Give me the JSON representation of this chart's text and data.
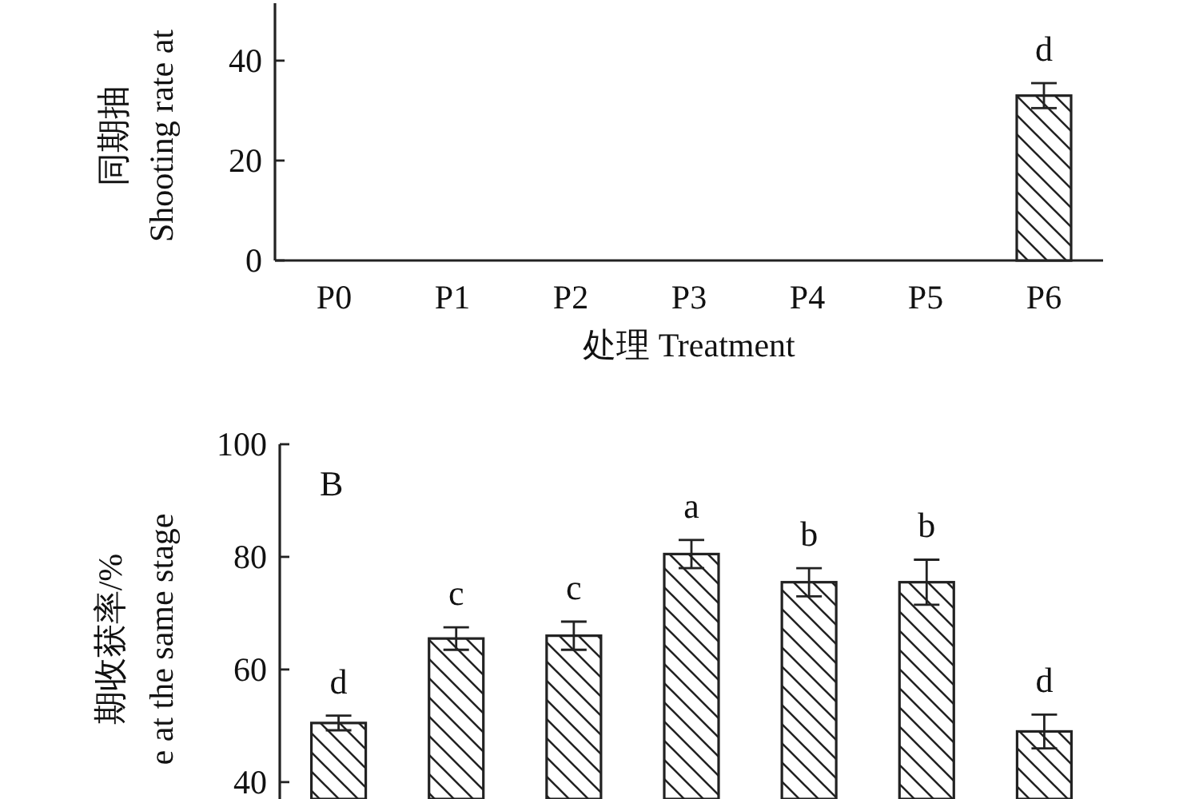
{
  "chart_data": [
    {
      "type": "bar",
      "ylabel": "同期抽\nShooting rate at",
      "xlabel": "处理 Treatment",
      "categories": [
        "P0",
        "P1",
        "P2",
        "P3",
        "P4",
        "P5",
        "P6"
      ],
      "values": [
        null,
        null,
        null,
        null,
        null,
        null,
        33
      ],
      "errors": [
        null,
        null,
        null,
        null,
        null,
        null,
        2.5
      ],
      "color": "#222222",
      "ylim": [
        0,
        51.5
      ],
      "yticks": [
        0,
        20,
        40
      ],
      "annotations": [
        "d"
      ]
    },
    {
      "type": "bar",
      "ylabel": "期收获率/%\ne at the same stage",
      "categories": [
        null,
        null,
        null,
        null,
        null,
        null,
        null
      ],
      "values": [
        50.5,
        65.5,
        66,
        80.5,
        75.5,
        75.5,
        49
      ],
      "errors": [
        1.3,
        2,
        2.5,
        2.5,
        2.5,
        4,
        3
      ],
      "color": "#222222",
      "ylim": [
        37,
        100
      ],
      "yticks": [
        40,
        60,
        80,
        100
      ],
      "tick_labels": "y",
      "annotations": [
        "B",
        "d",
        "c",
        "c",
        "a",
        "b",
        "b",
        "d"
      ]
    }
  ]
}
